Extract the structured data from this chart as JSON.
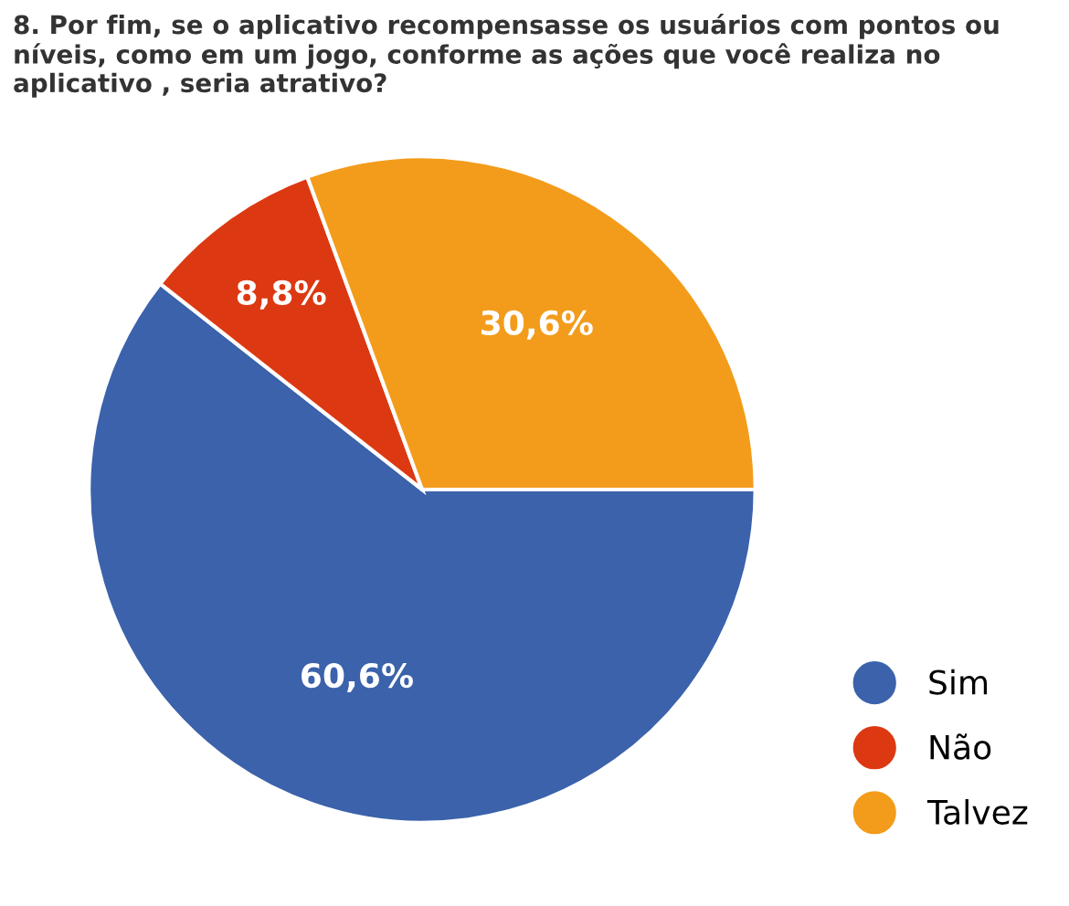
{
  "chart_data": {
    "type": "pie",
    "title": "8. Por fim, se o aplicativo recompensasse os usuários com pontos ou níveis, como em um jogo, conforme as ações que você realiza no aplicativo , seria atrativo?",
    "categories": [
      "Sim",
      "Não",
      "Talvez"
    ],
    "values": [
      60.6,
      8.8,
      30.6
    ],
    "value_labels": [
      "60,6%",
      "8,8%",
      "30,6%"
    ],
    "colors": [
      "#3b62ab",
      "#dc3912",
      "#f39c1b"
    ],
    "legend": "bottom right"
  }
}
